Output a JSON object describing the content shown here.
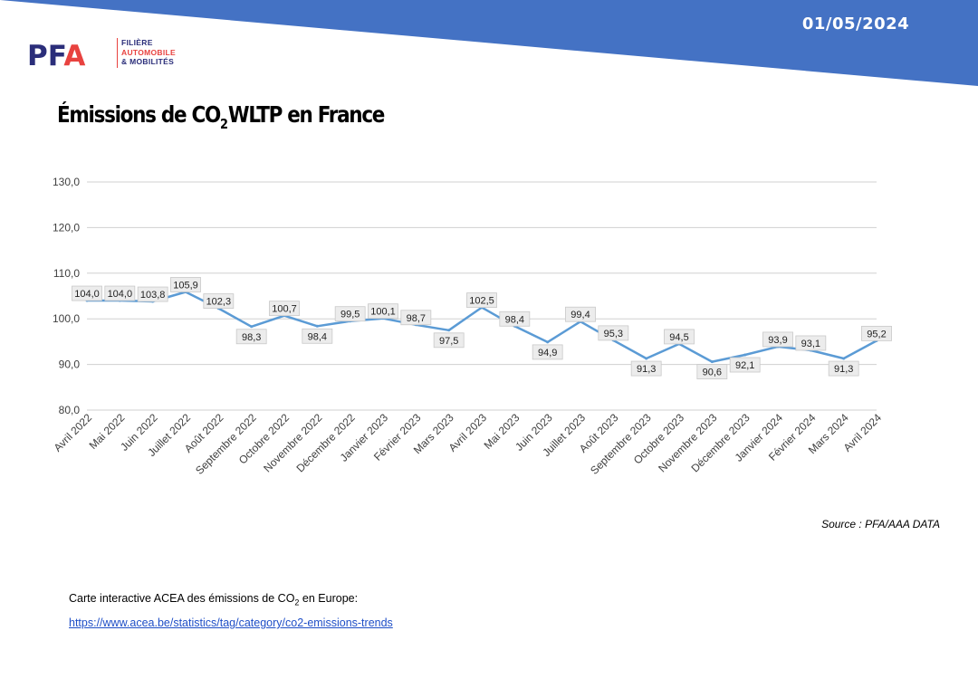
{
  "header": {
    "date": "01/05/2024",
    "banner_color": "#4472c4"
  },
  "logo": {
    "letters": "PFA",
    "line1": "FILIÈRE",
    "line2": "AUTOMOBILE",
    "line3": "& MOBILITÉS",
    "color_primary": "#2b2e7a",
    "color_accent": "#e8423f"
  },
  "title": {
    "part1": "Émissions de CO",
    "sub": "2",
    "part2": "WLTP en France"
  },
  "chart_data": {
    "type": "line",
    "categories": [
      "Avril 2022",
      "Mai 2022",
      "Juin 2022",
      "Juillet 2022",
      "Août 2022",
      "Septembre 2022",
      "Octobre 2022",
      "Novembre 2022",
      "Décembre 2022",
      "Janvier 2023",
      "Février 2023",
      "Mars 2023",
      "Avril 2023",
      "Mai 2023",
      "Juin 2023",
      "Juillet 2023",
      "Août 2023",
      "Septembre 2023",
      "Octobre 2023",
      "Novembre 2023",
      "Décembre 2023",
      "Janvier 2024",
      "Février 2024",
      "Mars 2024",
      "Avril 2024"
    ],
    "values": [
      104.0,
      104.0,
      103.8,
      105.9,
      102.3,
      98.3,
      100.7,
      98.4,
      99.5,
      100.1,
      98.7,
      97.5,
      102.5,
      98.4,
      94.9,
      99.4,
      95.3,
      91.3,
      94.5,
      90.6,
      92.1,
      93.9,
      93.1,
      91.3,
      95.2
    ],
    "data_labels": [
      "104,0",
      "104,0",
      "103,8",
      "105,9",
      "102,3",
      "98,3",
      "100,7",
      "98,4",
      "99,5",
      "100,1",
      "98,7",
      "97,5",
      "102,5",
      "98,4",
      "94,9",
      "99,4",
      "95,3",
      "91,3",
      "94,5",
      "90,6",
      "92,1",
      "93,9",
      "93,1",
      "91,3",
      "95,2"
    ],
    "label_position": [
      "above",
      "above",
      "above",
      "above",
      "above",
      "below",
      "above",
      "below",
      "above",
      "above",
      "above",
      "below",
      "above",
      "above",
      "below",
      "above",
      "above",
      "below",
      "above",
      "below",
      "below",
      "above",
      "above",
      "below",
      "above"
    ],
    "yticks": [
      "80,0",
      "90,0",
      "100,0",
      "110,0",
      "120,0",
      "130,0"
    ],
    "ylim": [
      80,
      130
    ],
    "grid": true,
    "legend": false,
    "line_color": "#5b9bd5",
    "label_bg": "#ececec"
  },
  "source": "Source : PFA/AAA DATA",
  "note": {
    "text_before": "Carte interactive ACEA des émissions de CO",
    "sub": "2",
    "text_after": " en Europe:"
  },
  "link": {
    "text": "https://www.acea.be/statistics/tag/category/co2-emissions-trends",
    "color": "#1f4fc7"
  }
}
